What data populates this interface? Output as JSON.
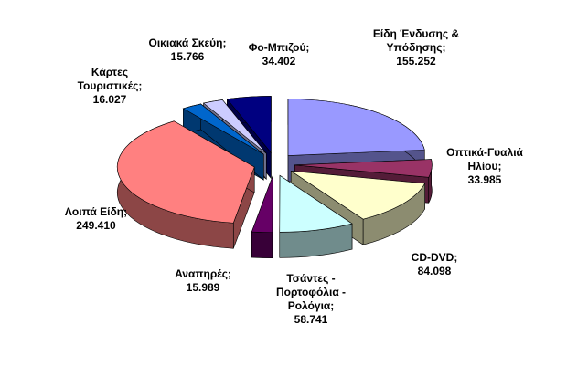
{
  "chart_data": {
    "type": "pie",
    "categories": [
      "Είδη Ένδυσης & Υπόδησης;",
      "Οπτικά-Γυαλιά Ηλίου;",
      "CD-DVD;",
      "Τσάντες - Πορτοφόλια - Ρολόγια;",
      "Αναπηρές;",
      "Λοιπά Είδη;",
      "Κάρτες Τουριστικές;",
      "Οικιακά Σκεύη;",
      "Φο-Μπιζού;"
    ],
    "values": [
      155.252,
      33.985,
      84.098,
      58.741,
      15.989,
      249.41,
      16.027,
      15.766,
      34.402
    ],
    "value_labels": [
      "155.252",
      "33.985",
      "84.098",
      "58.741",
      "15.989",
      "249.410",
      "16.027",
      "15.766",
      "34.402"
    ],
    "colors": [
      "#9999ff",
      "#993366",
      "#ffffcc",
      "#ccffff",
      "#660066",
      "#ff8080",
      "#0066cc",
      "#ccccff",
      "#000080"
    ]
  }
}
